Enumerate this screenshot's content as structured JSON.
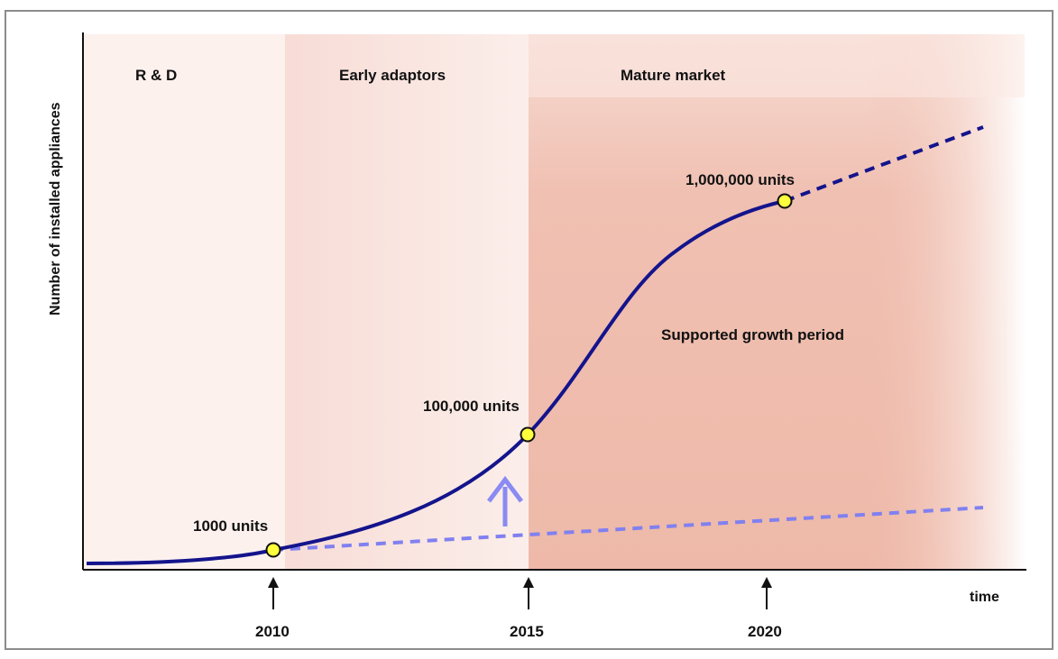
{
  "diagram": {
    "y_axis_label": "Number of installed appliances",
    "x_axis_label": "time",
    "phases": [
      {
        "label": "R & D"
      },
      {
        "label": "Early adaptors"
      },
      {
        "label": "Mature market"
      }
    ],
    "period_label": "Supported growth period",
    "milestones": [
      {
        "label": "1000 units",
        "year": "2010"
      },
      {
        "label": "100,000 units",
        "year": "2015"
      },
      {
        "label": "1,000,000 units",
        "year": "2020"
      }
    ],
    "colors": {
      "curve": "#14148c",
      "baseline_dashed": "#8080f0",
      "support_arrow": "#8a8af2",
      "milestone_marker": "#ffff3c",
      "phase_rnd_fill": "#fdf1ee",
      "phase_early_fill": "#f9e2dc",
      "phase_mature_fill": "#f0bdae",
      "frame": "#8c8c8c"
    }
  }
}
